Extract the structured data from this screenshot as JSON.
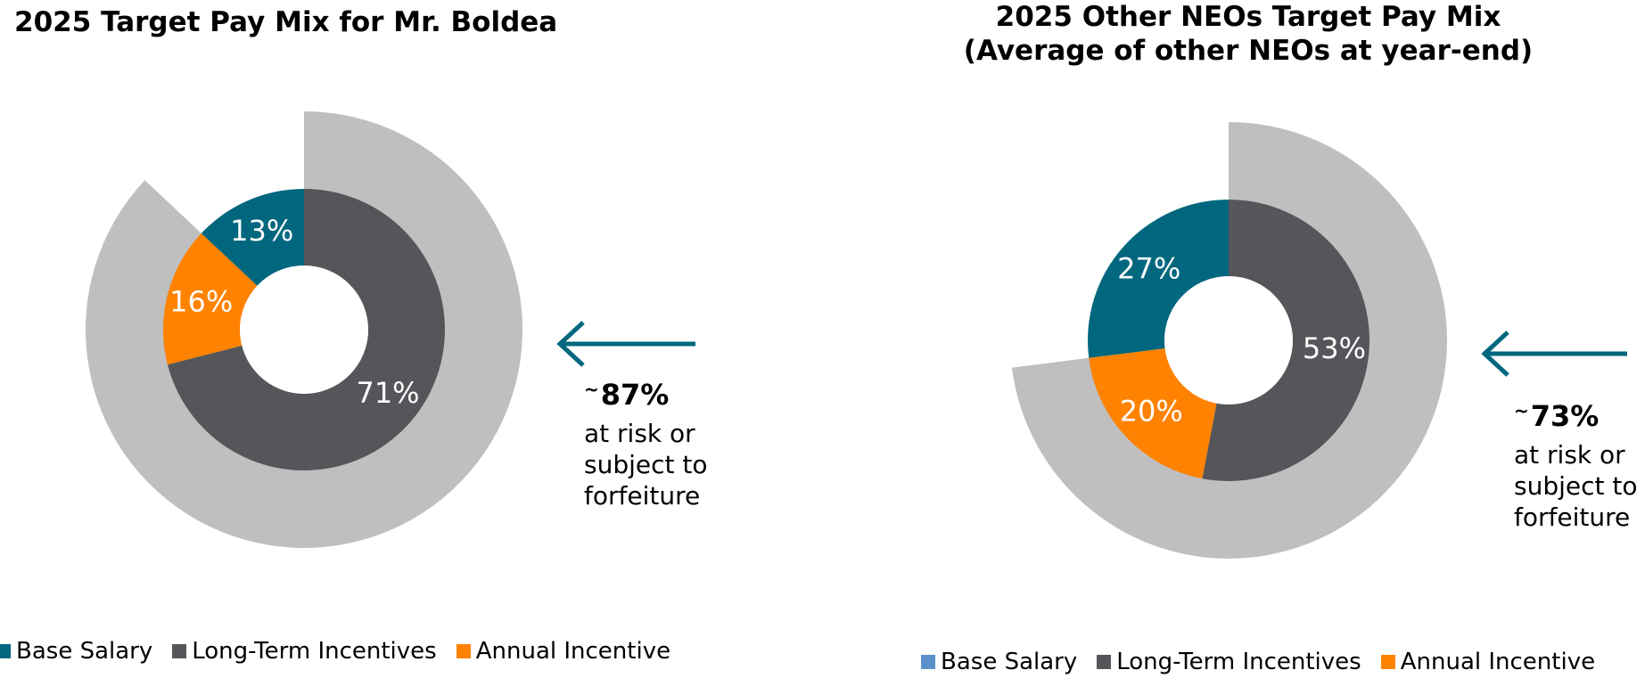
{
  "chart_data": [
    {
      "type": "pie",
      "title": "2025 Target Pay Mix for Mr. Boldea",
      "categories": [
        "Base Salary",
        "Long-Term Incentives",
        "Annual Incentive"
      ],
      "values": [
        13,
        71,
        16
      ],
      "value_labels": [
        "13%",
        "71%",
        "16%"
      ],
      "colors": [
        "#00677F",
        "#54565A",
        "#FF8200"
      ],
      "outer_ring": {
        "value": 87,
        "color": "#BFBFBF"
      },
      "callout": {
        "tilde": "~",
        "value": "87%",
        "lines": [
          "at risk or",
          "subject to",
          "forfeiture"
        ]
      },
      "legend": [
        {
          "label": "Base Salary",
          "color": "#00677F"
        },
        {
          "label": "Long-Term Incentives",
          "color": "#54565A"
        },
        {
          "label": "Annual Incentive",
          "color": "#FF8200"
        }
      ]
    },
    {
      "type": "pie",
      "title": [
        "2025 Other NEOs Target Pay Mix",
        "(Average of other NEOs at year-end)"
      ],
      "categories": [
        "Base Salary",
        "Long-Term Incentives",
        "Annual Incentive"
      ],
      "values": [
        27,
        53,
        20
      ],
      "value_labels": [
        "27%",
        "53%",
        "20%"
      ],
      "colors": [
        "#00677F",
        "#54565A",
        "#FF8200"
      ],
      "outer_ring": {
        "value": 73,
        "color": "#BFBFBF"
      },
      "callout": {
        "tilde": "~",
        "value": "73%",
        "lines": [
          "at risk or",
          "subject to",
          "forfeiture"
        ]
      },
      "legend": [
        {
          "label": "Base Salary",
          "color": "#5B8FC9"
        },
        {
          "label": "Long-Term Incentives",
          "color": "#54565A"
        },
        {
          "label": "Annual Incentive",
          "color": "#FF8200"
        }
      ]
    }
  ],
  "arrow_color": "#00677F"
}
